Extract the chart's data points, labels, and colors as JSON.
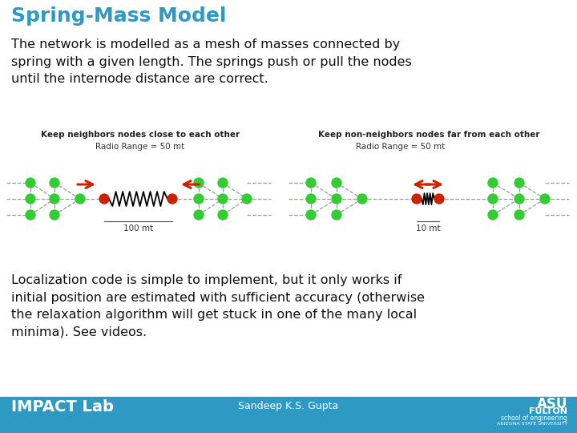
{
  "title": "Spring-Mass Model",
  "title_color": "#2E9AC4",
  "title_fontsize": 18,
  "bg_color": "#FFFFFF",
  "body_text1": "The network is modelled as a mesh of masses connected by\nspring with a given length. The springs push or pull the nodes\nuntil the internode distance are correct.",
  "body_text2": "Localization code is simple to implement, but it only works if\ninitial position are estimated with sufficient accuracy (otherwise\nthe relaxation algorithm will get stuck in one of the many local\nminima). See videos.",
  "body_fontsize": 11.5,
  "footer_bg": "#2E9AC4",
  "footer_text_left": "IMPACT Lab",
  "footer_text_center": "Sandeep K.S. Gupta",
  "left_diagram_label": "Keep neighbors nodes close to each other",
  "right_diagram_label": "Keep non-neighbors nodes far from each other",
  "left_radio_label": "Radio Range = 50 mt",
  "right_radio_label": "Radio Range = 50 mt",
  "left_dist_label": "100 mt",
  "right_dist_label": "10 mt",
  "node_color_green": "#33CC33",
  "node_color_red": "#CC2200",
  "arrow_color": "#CC2200",
  "spring_color": "#000000",
  "line_color": "#999999",
  "diag_label_fontsize": 7.5,
  "radio_label_fontsize": 7.5,
  "dist_label_fontsize": 7.5
}
